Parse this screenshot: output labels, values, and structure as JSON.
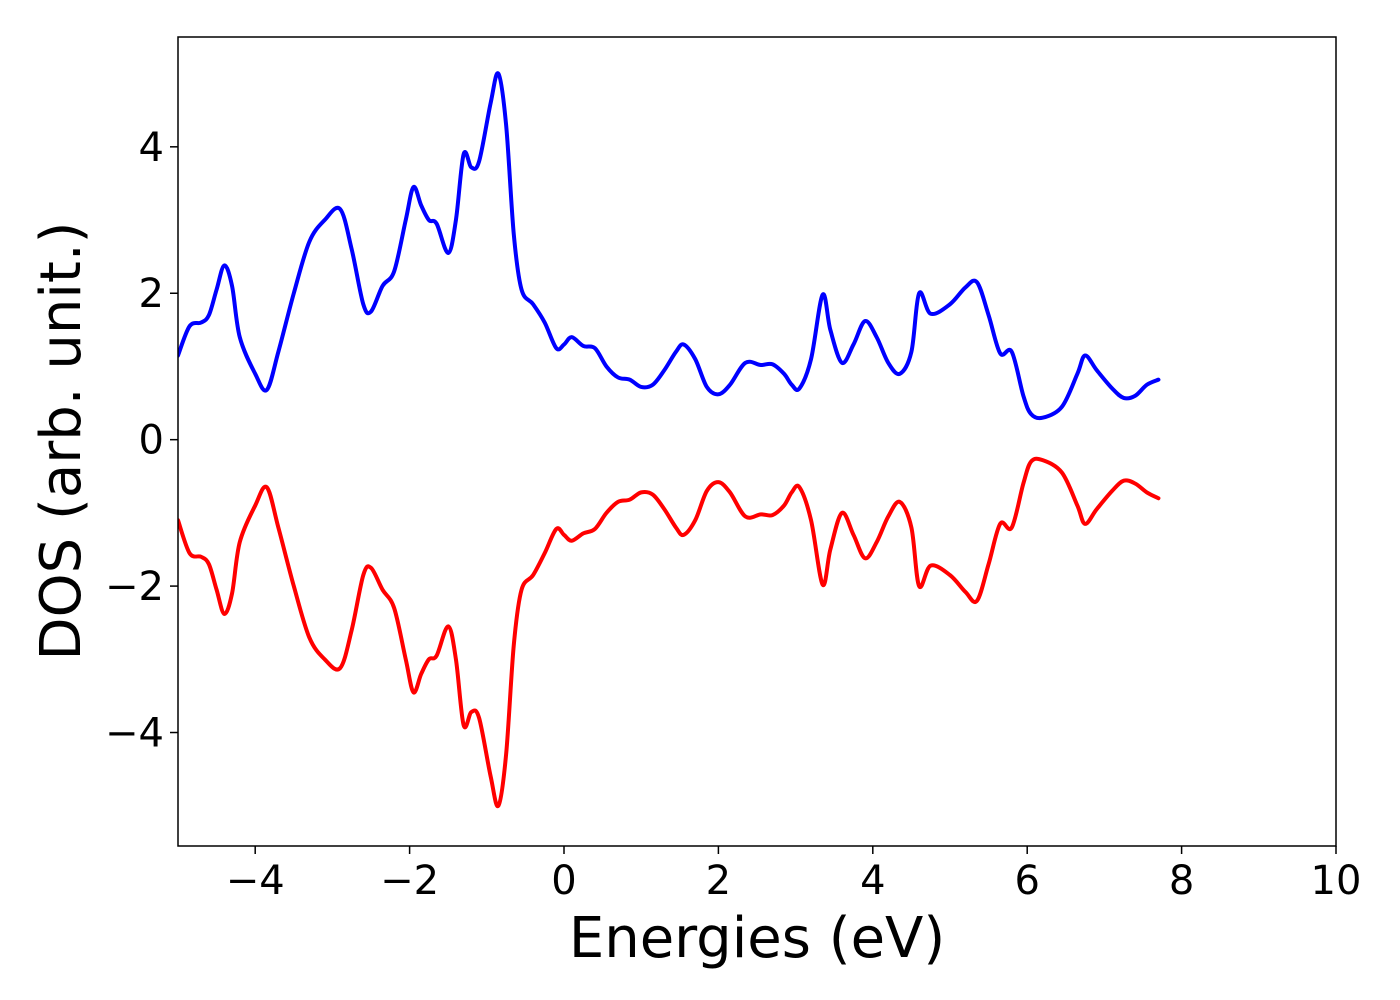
{
  "chart_data": {
    "type": "line",
    "title": "",
    "xlabel": "Energies (eV)",
    "ylabel": "DOS (arb. unit.)",
    "xlim": [
      -5,
      10
    ],
    "ylim": [
      -5.55,
      5.5
    ],
    "grid": false,
    "legend": "none",
    "x_ticks": [
      -4,
      -2,
      0,
      2,
      4,
      6,
      8,
      10
    ],
    "x_tick_labels": [
      "−4",
      "−2",
      "0",
      "2",
      "4",
      "6",
      "8",
      "10"
    ],
    "y_ticks": [
      -4,
      -2,
      0,
      2,
      4
    ],
    "y_tick_labels": [
      "−4",
      "−2",
      "0",
      "2",
      "4"
    ],
    "series": [
      {
        "color": "#0000ff",
        "points": [
          [
            -5.0,
            1.15
          ],
          [
            -4.85,
            1.55
          ],
          [
            -4.7,
            1.6
          ],
          [
            -4.6,
            1.7
          ],
          [
            -4.5,
            2.05
          ],
          [
            -4.4,
            2.38
          ],
          [
            -4.3,
            2.1
          ],
          [
            -4.2,
            1.4
          ],
          [
            -4.0,
            0.9
          ],
          [
            -3.85,
            0.68
          ],
          [
            -3.7,
            1.2
          ],
          [
            -3.5,
            2.0
          ],
          [
            -3.3,
            2.7
          ],
          [
            -3.1,
            3.0
          ],
          [
            -2.9,
            3.15
          ],
          [
            -2.75,
            2.6
          ],
          [
            -2.6,
            1.85
          ],
          [
            -2.5,
            1.75
          ],
          [
            -2.35,
            2.1
          ],
          [
            -2.2,
            2.3
          ],
          [
            -2.05,
            3.0
          ],
          [
            -1.95,
            3.45
          ],
          [
            -1.85,
            3.2
          ],
          [
            -1.75,
            3.0
          ],
          [
            -1.65,
            2.95
          ],
          [
            -1.5,
            2.55
          ],
          [
            -1.4,
            3.0
          ],
          [
            -1.3,
            3.9
          ],
          [
            -1.2,
            3.72
          ],
          [
            -1.1,
            3.8
          ],
          [
            -0.95,
            4.6
          ],
          [
            -0.85,
            5.0
          ],
          [
            -0.75,
            4.3
          ],
          [
            -0.65,
            2.8
          ],
          [
            -0.55,
            2.05
          ],
          [
            -0.4,
            1.85
          ],
          [
            -0.25,
            1.6
          ],
          [
            -0.1,
            1.25
          ],
          [
            0.0,
            1.3
          ],
          [
            0.1,
            1.4
          ],
          [
            0.25,
            1.28
          ],
          [
            0.4,
            1.25
          ],
          [
            0.55,
            1.0
          ],
          [
            0.7,
            0.85
          ],
          [
            0.85,
            0.82
          ],
          [
            1.0,
            0.72
          ],
          [
            1.15,
            0.75
          ],
          [
            1.3,
            0.95
          ],
          [
            1.45,
            1.2
          ],
          [
            1.55,
            1.3
          ],
          [
            1.7,
            1.1
          ],
          [
            1.85,
            0.72
          ],
          [
            2.0,
            0.62
          ],
          [
            2.15,
            0.75
          ],
          [
            2.35,
            1.05
          ],
          [
            2.55,
            1.02
          ],
          [
            2.7,
            1.03
          ],
          [
            2.85,
            0.9
          ],
          [
            2.95,
            0.75
          ],
          [
            3.05,
            0.7
          ],
          [
            3.2,
            1.1
          ],
          [
            3.35,
            1.98
          ],
          [
            3.45,
            1.5
          ],
          [
            3.6,
            1.05
          ],
          [
            3.75,
            1.3
          ],
          [
            3.9,
            1.62
          ],
          [
            4.05,
            1.4
          ],
          [
            4.2,
            1.05
          ],
          [
            4.35,
            0.9
          ],
          [
            4.5,
            1.2
          ],
          [
            4.6,
            2.0
          ],
          [
            4.75,
            1.72
          ],
          [
            5.0,
            1.85
          ],
          [
            5.2,
            2.08
          ],
          [
            5.35,
            2.15
          ],
          [
            5.5,
            1.7
          ],
          [
            5.65,
            1.18
          ],
          [
            5.8,
            1.2
          ],
          [
            5.95,
            0.6
          ],
          [
            6.05,
            0.35
          ],
          [
            6.2,
            0.3
          ],
          [
            6.45,
            0.45
          ],
          [
            6.65,
            0.9
          ],
          [
            6.75,
            1.15
          ],
          [
            6.9,
            0.95
          ],
          [
            7.1,
            0.7
          ],
          [
            7.25,
            0.57
          ],
          [
            7.4,
            0.6
          ],
          [
            7.55,
            0.75
          ],
          [
            7.7,
            0.82
          ]
        ]
      },
      {
        "color": "#ff0000",
        "points": [
          [
            -5.0,
            -1.1
          ],
          [
            -4.85,
            -1.55
          ],
          [
            -4.7,
            -1.6
          ],
          [
            -4.6,
            -1.7
          ],
          [
            -4.5,
            -2.05
          ],
          [
            -4.4,
            -2.38
          ],
          [
            -4.3,
            -2.1
          ],
          [
            -4.2,
            -1.4
          ],
          [
            -4.0,
            -0.9
          ],
          [
            -3.85,
            -0.65
          ],
          [
            -3.7,
            -1.2
          ],
          [
            -3.5,
            -2.0
          ],
          [
            -3.3,
            -2.7
          ],
          [
            -3.1,
            -3.0
          ],
          [
            -2.9,
            -3.12
          ],
          [
            -2.75,
            -2.6
          ],
          [
            -2.6,
            -1.85
          ],
          [
            -2.5,
            -1.75
          ],
          [
            -2.35,
            -2.05
          ],
          [
            -2.2,
            -2.3
          ],
          [
            -2.05,
            -3.0
          ],
          [
            -1.95,
            -3.45
          ],
          [
            -1.85,
            -3.2
          ],
          [
            -1.75,
            -3.0
          ],
          [
            -1.65,
            -2.95
          ],
          [
            -1.5,
            -2.55
          ],
          [
            -1.4,
            -3.0
          ],
          [
            -1.3,
            -3.9
          ],
          [
            -1.2,
            -3.72
          ],
          [
            -1.1,
            -3.8
          ],
          [
            -0.95,
            -4.6
          ],
          [
            -0.85,
            -5.0
          ],
          [
            -0.75,
            -4.3
          ],
          [
            -0.65,
            -2.8
          ],
          [
            -0.55,
            -2.05
          ],
          [
            -0.4,
            -1.85
          ],
          [
            -0.25,
            -1.55
          ],
          [
            -0.1,
            -1.22
          ],
          [
            0.0,
            -1.3
          ],
          [
            0.1,
            -1.38
          ],
          [
            0.25,
            -1.28
          ],
          [
            0.4,
            -1.22
          ],
          [
            0.55,
            -1.0
          ],
          [
            0.7,
            -0.85
          ],
          [
            0.85,
            -0.82
          ],
          [
            1.0,
            -0.72
          ],
          [
            1.15,
            -0.75
          ],
          [
            1.3,
            -0.95
          ],
          [
            1.45,
            -1.2
          ],
          [
            1.55,
            -1.3
          ],
          [
            1.7,
            -1.1
          ],
          [
            1.85,
            -0.7
          ],
          [
            2.0,
            -0.58
          ],
          [
            2.15,
            -0.72
          ],
          [
            2.35,
            -1.05
          ],
          [
            2.55,
            -1.02
          ],
          [
            2.7,
            -1.03
          ],
          [
            2.85,
            -0.9
          ],
          [
            2.95,
            -0.72
          ],
          [
            3.05,
            -0.65
          ],
          [
            3.2,
            -1.1
          ],
          [
            3.35,
            -1.98
          ],
          [
            3.45,
            -1.5
          ],
          [
            3.6,
            -1.0
          ],
          [
            3.75,
            -1.3
          ],
          [
            3.9,
            -1.62
          ],
          [
            4.05,
            -1.4
          ],
          [
            4.2,
            -1.05
          ],
          [
            4.35,
            -0.85
          ],
          [
            4.5,
            -1.2
          ],
          [
            4.6,
            -2.0
          ],
          [
            4.75,
            -1.72
          ],
          [
            5.0,
            -1.85
          ],
          [
            5.2,
            -2.08
          ],
          [
            5.35,
            -2.2
          ],
          [
            5.5,
            -1.7
          ],
          [
            5.65,
            -1.15
          ],
          [
            5.8,
            -1.2
          ],
          [
            5.95,
            -0.6
          ],
          [
            6.05,
            -0.3
          ],
          [
            6.2,
            -0.28
          ],
          [
            6.45,
            -0.45
          ],
          [
            6.65,
            -0.9
          ],
          [
            6.75,
            -1.15
          ],
          [
            6.9,
            -0.95
          ],
          [
            7.1,
            -0.7
          ],
          [
            7.25,
            -0.56
          ],
          [
            7.4,
            -0.6
          ],
          [
            7.55,
            -0.72
          ],
          [
            7.7,
            -0.8
          ]
        ]
      }
    ]
  }
}
